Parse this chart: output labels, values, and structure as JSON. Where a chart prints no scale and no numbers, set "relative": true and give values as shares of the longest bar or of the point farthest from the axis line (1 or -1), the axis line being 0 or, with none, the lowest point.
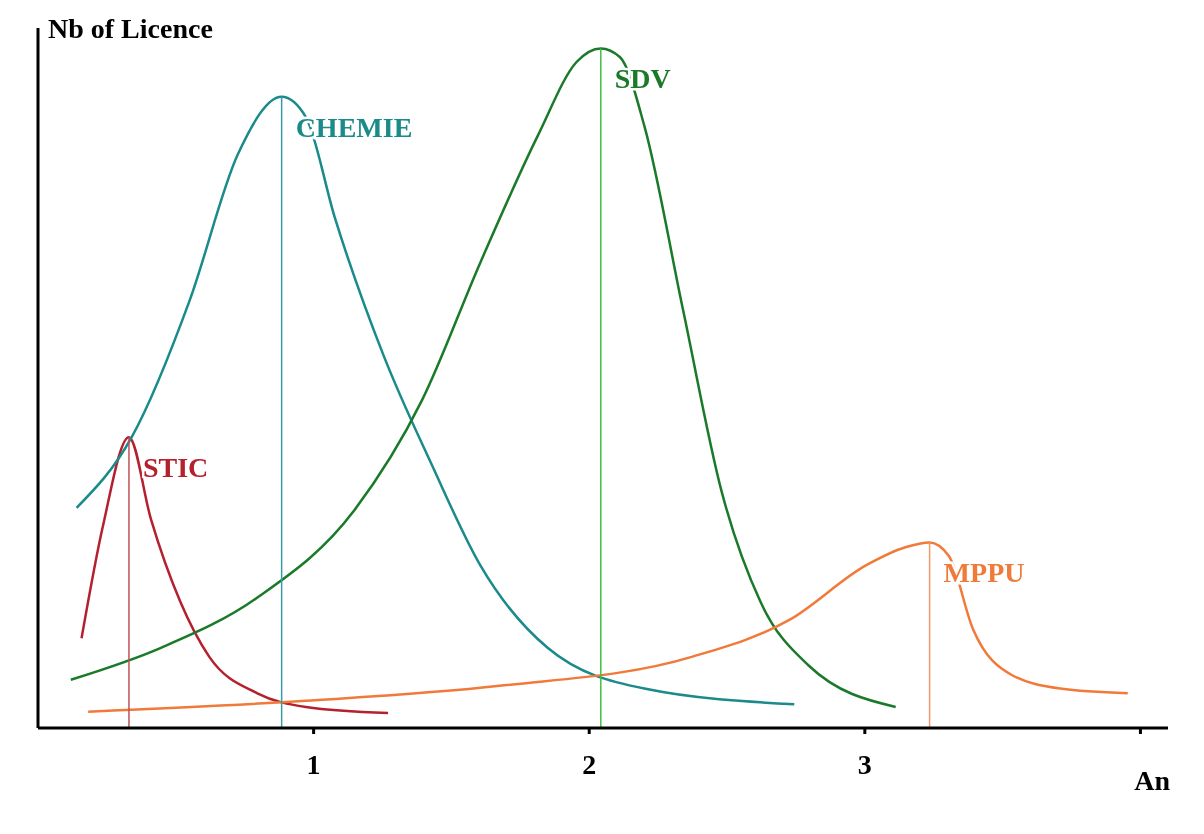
{
  "chart_data": {
    "type": "line",
    "xlabel": "An",
    "ylabel": "Nb of Licence",
    "relative": true,
    "xlim": [
      0,
      4.1
    ],
    "xticks": [
      1,
      2,
      3,
      {
        "value": 4,
        "label": null
      }
    ],
    "grid": false,
    "legend": false,
    "marker": "none",
    "line_style": "solid",
    "series": [
      {
        "name": "STIC",
        "color": "#b5202e",
        "x": [
          0.158,
          0.235,
          0.33,
          0.41,
          0.516,
          0.621,
          0.796,
          0.972,
          1.27
        ],
        "values": [
          0.132,
          0.296,
          0.428,
          0.307,
          0.186,
          0.105,
          0.051,
          0.031,
          0.022
        ]
      },
      {
        "name": "CHEMIE",
        "color": "#1a8a8a",
        "x": [
          0.14,
          0.34,
          0.551,
          0.726,
          0.884,
          0.972,
          1.077,
          1.253,
          1.428,
          1.604,
          1.849,
          2.2,
          2.744
        ],
        "values": [
          0.324,
          0.428,
          0.63,
          0.845,
          0.929,
          0.899,
          0.751,
          0.549,
          0.388,
          0.24,
          0.118,
          0.058,
          0.035
        ]
      },
      {
        "name": "SDV",
        "color": "#1a7a2a",
        "x": [
          0.119,
          0.446,
          0.796,
          1.147,
          1.393,
          1.604,
          1.814,
          1.954,
          2.042,
          2.112,
          2.2,
          2.34,
          2.481,
          2.621,
          2.796,
          3.112
        ],
        "values": [
          0.071,
          0.118,
          0.192,
          0.32,
          0.482,
          0.684,
          0.872,
          0.98,
          1.0,
          0.987,
          0.886,
          0.616,
          0.347,
          0.186,
          0.092,
          0.031
        ]
      },
      {
        "name": "MPPU",
        "color": "#f07a3a",
        "x": [
          0.182,
          0.972,
          1.674,
          2.375,
          2.726,
          3.007,
          3.147,
          3.235,
          3.305,
          3.393,
          3.533,
          3.709,
          3.954
        ],
        "values": [
          0.024,
          0.04,
          0.062,
          0.105,
          0.159,
          0.24,
          0.266,
          0.273,
          0.253,
          0.145,
          0.078,
          0.058,
          0.051
        ]
      },
      {
        "color": "#c0505a",
        "x": [
          0.33,
          0.33
        ],
        "values": [
          0,
          0.428
        ]
      },
      {
        "color": "#3a9aaa",
        "x": [
          0.884,
          0.884
        ],
        "values": [
          0,
          0.929
        ]
      },
      {
        "color": "#40c040",
        "x": [
          2.042,
          2.042
        ],
        "values": [
          0,
          1.0
        ]
      },
      {
        "color": "#f09a6a",
        "x": [
          3.235,
          3.235
        ],
        "values": [
          0,
          0.273
        ]
      }
    ]
  }
}
